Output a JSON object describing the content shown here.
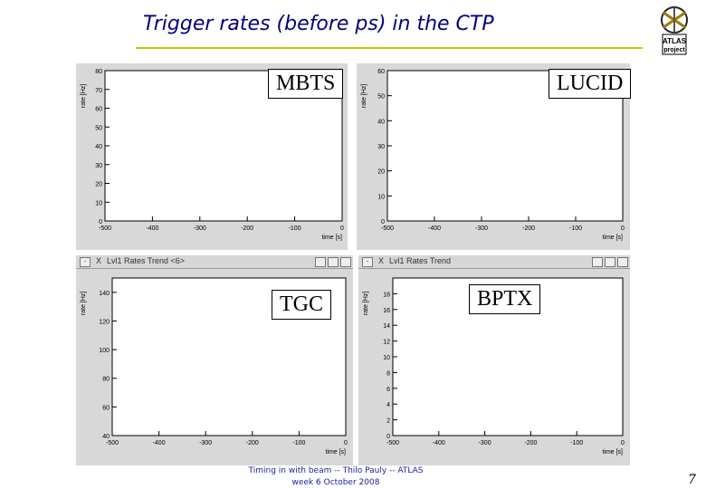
{
  "slide": {
    "title": "Trigger rates (before ps) in the CTP",
    "logo_text": "ATLAS project",
    "footer_line1": "Timing in with beam -- Thilo Pauly -- ATLAS",
    "footer_line2": "week 6 October 2008",
    "page_number": "7"
  },
  "windows": {
    "bottom_left_title": "Lvl1 Rates Trend <6>",
    "bottom_right_title": "Lvl1 Rates Trend",
    "close_glyph": "X"
  },
  "chart_data": [
    {
      "type": "line",
      "label": "MBTS",
      "xlabel": "time [s]",
      "ylabel": "rate [Hz]",
      "xlim": [
        -500,
        0
      ],
      "ylim": [
        0,
        80
      ],
      "xticks": [
        -500,
        -400,
        -300,
        -200,
        -100,
        0
      ],
      "yticks": [
        0,
        10,
        20,
        30,
        40,
        50,
        60,
        70,
        80
      ]
    },
    {
      "type": "line",
      "label": "LUCID",
      "xlabel": "time [s]",
      "ylabel": "rate [Hz]",
      "xlim": [
        -500,
        0
      ],
      "ylim": [
        0,
        60
      ],
      "xticks": [
        -500,
        -400,
        -300,
        -200,
        -100,
        0
      ],
      "yticks": [
        0,
        10,
        20,
        30,
        40,
        50,
        60
      ]
    },
    {
      "type": "line",
      "label": "TGC",
      "xlabel": "time [s]",
      "ylabel": "rate [Hz]",
      "xlim": [
        -500,
        0
      ],
      "ylim": [
        40,
        150
      ],
      "xticks": [
        -500,
        -400,
        -300,
        -200,
        -100,
        0
      ],
      "yticks": [
        40,
        60,
        80,
        100,
        120,
        140
      ]
    },
    {
      "type": "line",
      "label": "BPTX",
      "xlabel": "time [s]",
      "ylabel": "rate [Hz]",
      "xlim": [
        -500,
        0
      ],
      "ylim": [
        0,
        20
      ],
      "xticks": [
        -500,
        -400,
        -300,
        -200,
        -100,
        0
      ],
      "yticks": [
        0,
        2,
        4,
        6,
        8,
        10,
        12,
        14,
        16,
        18
      ]
    }
  ]
}
